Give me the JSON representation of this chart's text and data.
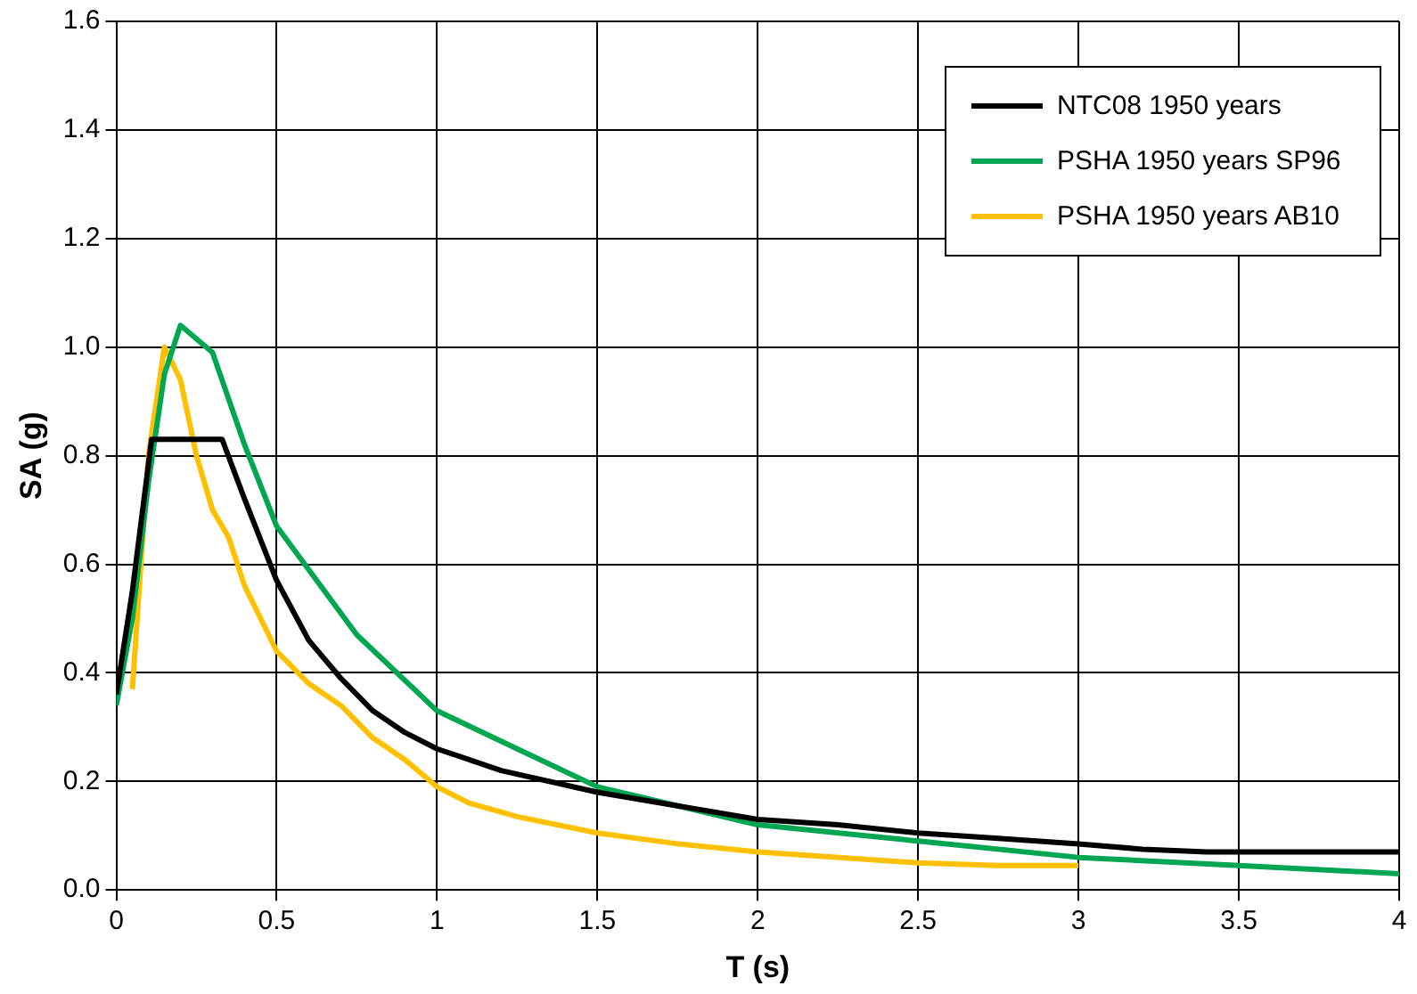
{
  "chart_data": {
    "type": "line",
    "xlabel": "T (s)",
    "ylabel": "SA (g)",
    "xlim": [
      0,
      4
    ],
    "ylim": [
      0,
      1.6
    ],
    "xticks": [
      0,
      0.5,
      1,
      1.5,
      2,
      2.5,
      3,
      3.5,
      4
    ],
    "yticks": [
      {
        "value": 0,
        "label": "0.0"
      },
      {
        "value": 0.2,
        "label": "0.2"
      },
      {
        "value": 0.4,
        "label": "0.4"
      },
      {
        "value": 0.6,
        "label": "0.6"
      },
      {
        "value": 0.8,
        "label": "0.8"
      },
      {
        "value": 1,
        "label": "1.0"
      },
      {
        "value": 1.2,
        "label": "1.2"
      },
      {
        "value": 1.4,
        "label": "1.4"
      },
      {
        "value": 1.6,
        "label": "1.6"
      }
    ],
    "grid": true,
    "legend": "top right",
    "marker": "none",
    "line_style": "solid",
    "series": [
      {
        "name": "NTC08 1950 years",
        "color": "#000000",
        "x": [
          0,
          0.05,
          0.11,
          0.33,
          0.4,
          0.5,
          0.6,
          0.7,
          0.8,
          0.9,
          1.0,
          1.2,
          1.5,
          1.75,
          2.0,
          2.25,
          2.5,
          2.75,
          3.0,
          3.2,
          3.4,
          4
        ],
        "values": [
          0.36,
          0.55,
          0.83,
          0.83,
          0.72,
          0.57,
          0.46,
          0.39,
          0.33,
          0.29,
          0.26,
          0.22,
          0.18,
          0.155,
          0.13,
          0.12,
          0.105,
          0.095,
          0.085,
          0.075,
          0.07,
          0.07
        ]
      },
      {
        "name": "PSHA 1950 years SP96",
        "color": "#00a651",
        "x": [
          0,
          0.05,
          0.1,
          0.15,
          0.2,
          0.3,
          0.4,
          0.5,
          0.75,
          1.0,
          1.25,
          1.5,
          1.75,
          2.0,
          2.5,
          3.0,
          3.5,
          4
        ],
        "values": [
          0.34,
          0.5,
          0.75,
          0.95,
          1.04,
          0.99,
          0.82,
          0.67,
          0.47,
          0.33,
          0.26,
          0.19,
          0.155,
          0.12,
          0.09,
          0.06,
          0.045,
          0.03
        ]
      },
      {
        "name": "PSHA 1950 years AB10",
        "color": "#ffc000",
        "x": [
          0.05,
          0.1,
          0.15,
          0.2,
          0.25,
          0.3,
          0.35,
          0.4,
          0.5,
          0.6,
          0.7,
          0.8,
          0.9,
          1.0,
          1.1,
          1.25,
          1.5,
          1.75,
          2.0,
          2.5,
          2.75,
          3.0
        ],
        "values": [
          0.37,
          0.8,
          1.0,
          0.94,
          0.8,
          0.7,
          0.65,
          0.56,
          0.44,
          0.38,
          0.34,
          0.28,
          0.24,
          0.19,
          0.16,
          0.135,
          0.105,
          0.085,
          0.07,
          0.05,
          0.045,
          0.045
        ]
      }
    ]
  }
}
